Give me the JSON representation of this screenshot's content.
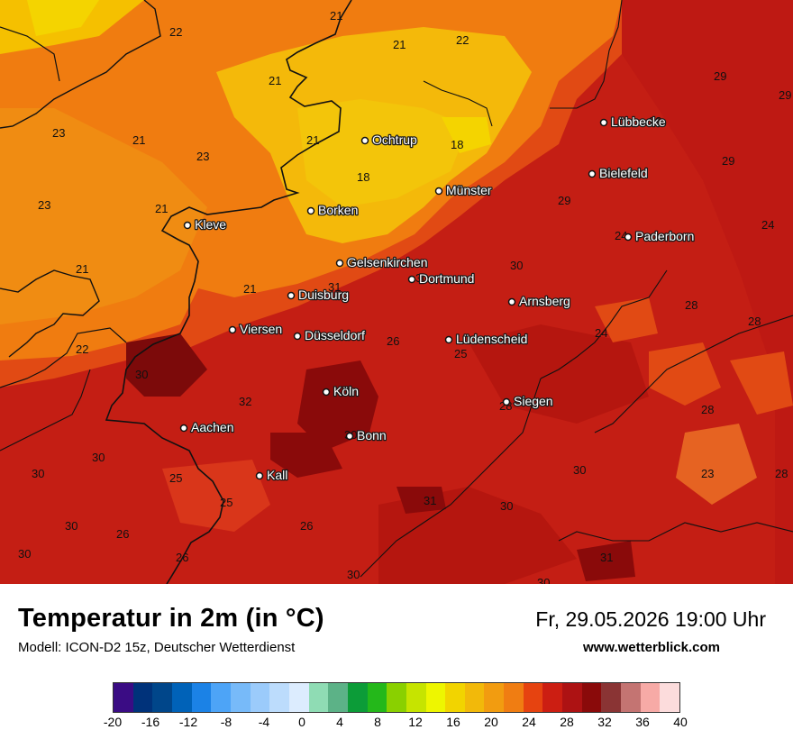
{
  "map": {
    "cities": [
      {
        "name": "Ochtrup",
        "key": "ochtrup"
      },
      {
        "name": "Lübbecke",
        "key": "luebbecke"
      },
      {
        "name": "Bielefeld",
        "key": "bielefeld"
      },
      {
        "name": "Münster",
        "key": "muenster"
      },
      {
        "name": "Borken",
        "key": "borken"
      },
      {
        "name": "Kleve",
        "key": "kleve"
      },
      {
        "name": "Paderborn",
        "key": "paderborn"
      },
      {
        "name": "Gelsenkirchen",
        "key": "gelsenkirchen"
      },
      {
        "name": "Dortmund",
        "key": "dortmund"
      },
      {
        "name": "Duisburg",
        "key": "duisburg"
      },
      {
        "name": "Arnsberg",
        "key": "arnsberg"
      },
      {
        "name": "Viersen",
        "key": "viersen"
      },
      {
        "name": "Düsseldorf",
        "key": "duesseldorf"
      },
      {
        "name": "Lüdenscheid",
        "key": "luedenscheid"
      },
      {
        "name": "Köln",
        "key": "koeln"
      },
      {
        "name": "Siegen",
        "key": "siegen"
      },
      {
        "name": "Aachen",
        "key": "aachen"
      },
      {
        "name": "Bonn",
        "key": "bonn"
      },
      {
        "name": "Kall",
        "key": "kall"
      }
    ],
    "values": [
      "21",
      "22",
      "21",
      "22",
      "21",
      "29",
      "29",
      "23",
      "21",
      "21",
      "23",
      "18",
      "29",
      "18",
      "29",
      "23",
      "21",
      "24",
      "24",
      "21",
      "29",
      "30",
      "30",
      "21",
      "28",
      "28",
      "22",
      "26",
      "24",
      "25",
      "31",
      "28",
      "32",
      "28",
      "30",
      "30",
      "23",
      "28",
      "25",
      "31",
      "30",
      "30",
      "25",
      "26",
      "26",
      "30",
      "26",
      "30",
      "30",
      "31",
      "30",
      "29",
      "30",
      "30"
    ]
  },
  "footer": {
    "title": "Temperatur in 2m (in °C)",
    "model": "Modell: ICON-D2 15z, Deutscher Wetterdienst",
    "datetime": "Fr, 29.05.2026 19:00 Uhr",
    "website": "www.wetterblick.com"
  },
  "legend": {
    "colors": [
      "#3a0c84",
      "#00327a",
      "#00468a",
      "#0062b8",
      "#1b82e6",
      "#4da4f7",
      "#77baf9",
      "#9bcbfb",
      "#bcdcfc",
      "#dcecfe",
      "#8fdcb4",
      "#5cb287",
      "#0c9c38",
      "#24b81a",
      "#8ad000",
      "#c6e400",
      "#eef600",
      "#f2d400",
      "#f2b90a",
      "#f29c10",
      "#f07d12",
      "#e64310",
      "#cc1e12",
      "#ad1213",
      "#8a0a0a",
      "#8a3434",
      "#c47472",
      "#f7aaa6",
      "#fcdcdc"
    ],
    "ticks": [
      "-20",
      "-16",
      "-12",
      "-8",
      "-4",
      "0",
      "4",
      "8",
      "12",
      "16",
      "20",
      "24",
      "28",
      "32",
      "36",
      "40"
    ]
  }
}
